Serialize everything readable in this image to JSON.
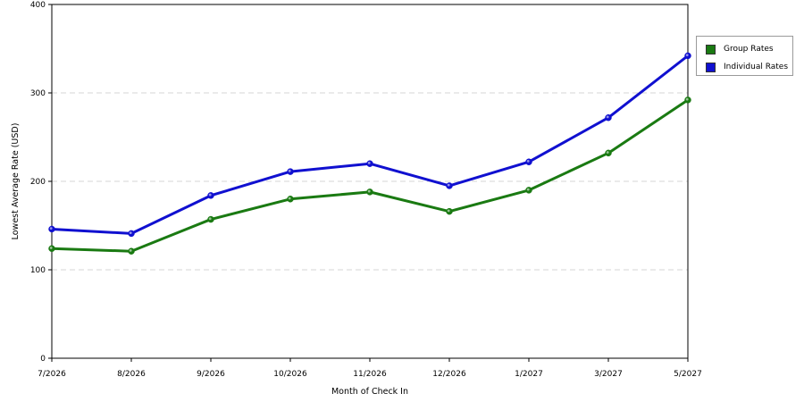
{
  "chart_data": {
    "type": "line",
    "xlabel": "Month of Check In",
    "ylabel": "Lowest Average Rate (USD)",
    "ylim": [
      0,
      400
    ],
    "yticks": [
      0,
      100,
      200,
      300,
      400
    ],
    "grid": "horizontal dashed",
    "legend_position": "right",
    "categories": [
      "7/2026",
      "8/2026",
      "9/2026",
      "10/2026",
      "11/2026",
      "12/2026",
      "1/2027",
      "3/2027",
      "5/2027"
    ],
    "series": [
      {
        "name": "Group Rates",
        "color": "#1a7a12",
        "values": [
          124,
          121,
          157,
          180,
          188,
          166,
          190,
          232,
          292
        ]
      },
      {
        "name": "Individual Rates",
        "color": "#1010d0",
        "values": [
          146,
          141,
          184,
          211,
          220,
          195,
          222,
          272,
          342
        ]
      }
    ]
  }
}
